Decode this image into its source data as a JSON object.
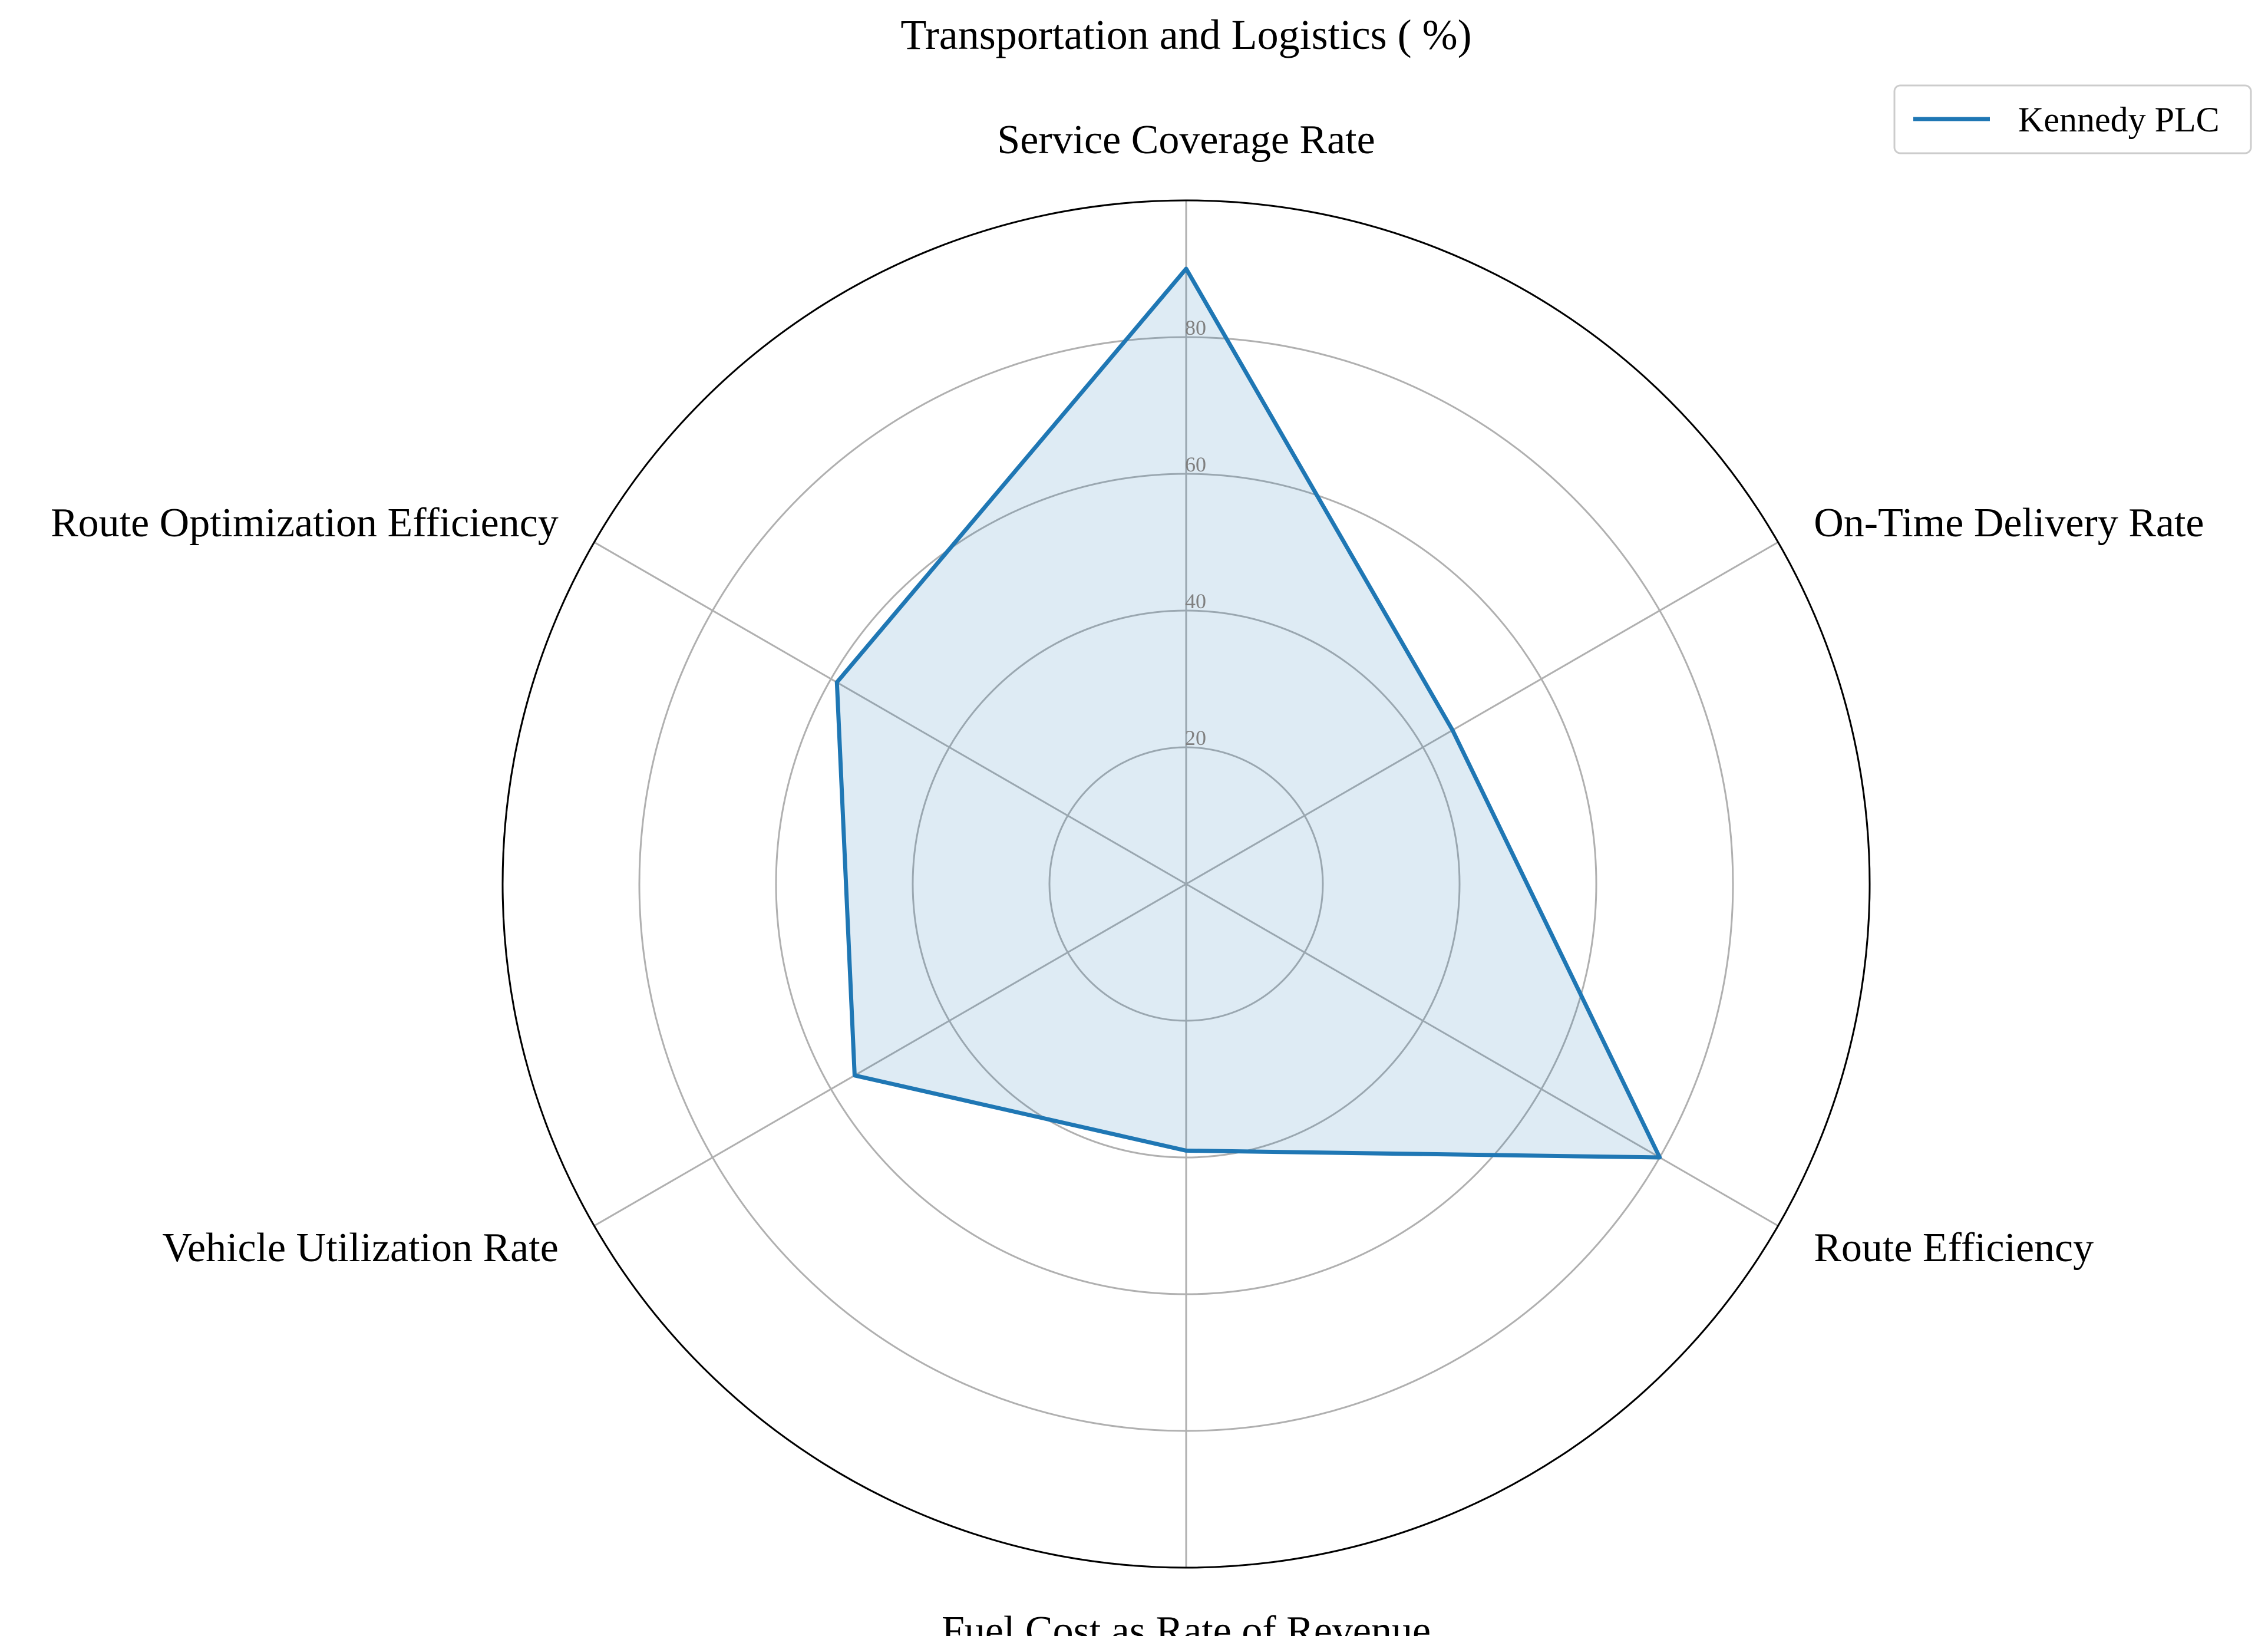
{
  "chart_data": {
    "type": "radar",
    "title": "Transportation and Logistics ( %)",
    "categories": [
      "Service Coverage Rate",
      "On-Time Delivery Rate",
      "Route Efficiency",
      "Fuel Cost as Rate of Revenue",
      "Vehicle Utilization Rate",
      "Route Optimization Efficiency"
    ],
    "series": [
      {
        "name": "Kennedy PLC",
        "values": [
          90,
          45,
          80,
          39,
          56,
          59
        ]
      }
    ],
    "rlim": [
      0,
      100
    ],
    "rticks": [
      20,
      40,
      60,
      80
    ],
    "rtick_labels": [
      "20",
      "40",
      "60",
      "80"
    ],
    "grid": true,
    "legend": "top-right",
    "colors": {
      "line": "#1f77b4",
      "fill": "#1f77b4",
      "grid": "#b0b0b0",
      "outer": "#000000"
    }
  }
}
